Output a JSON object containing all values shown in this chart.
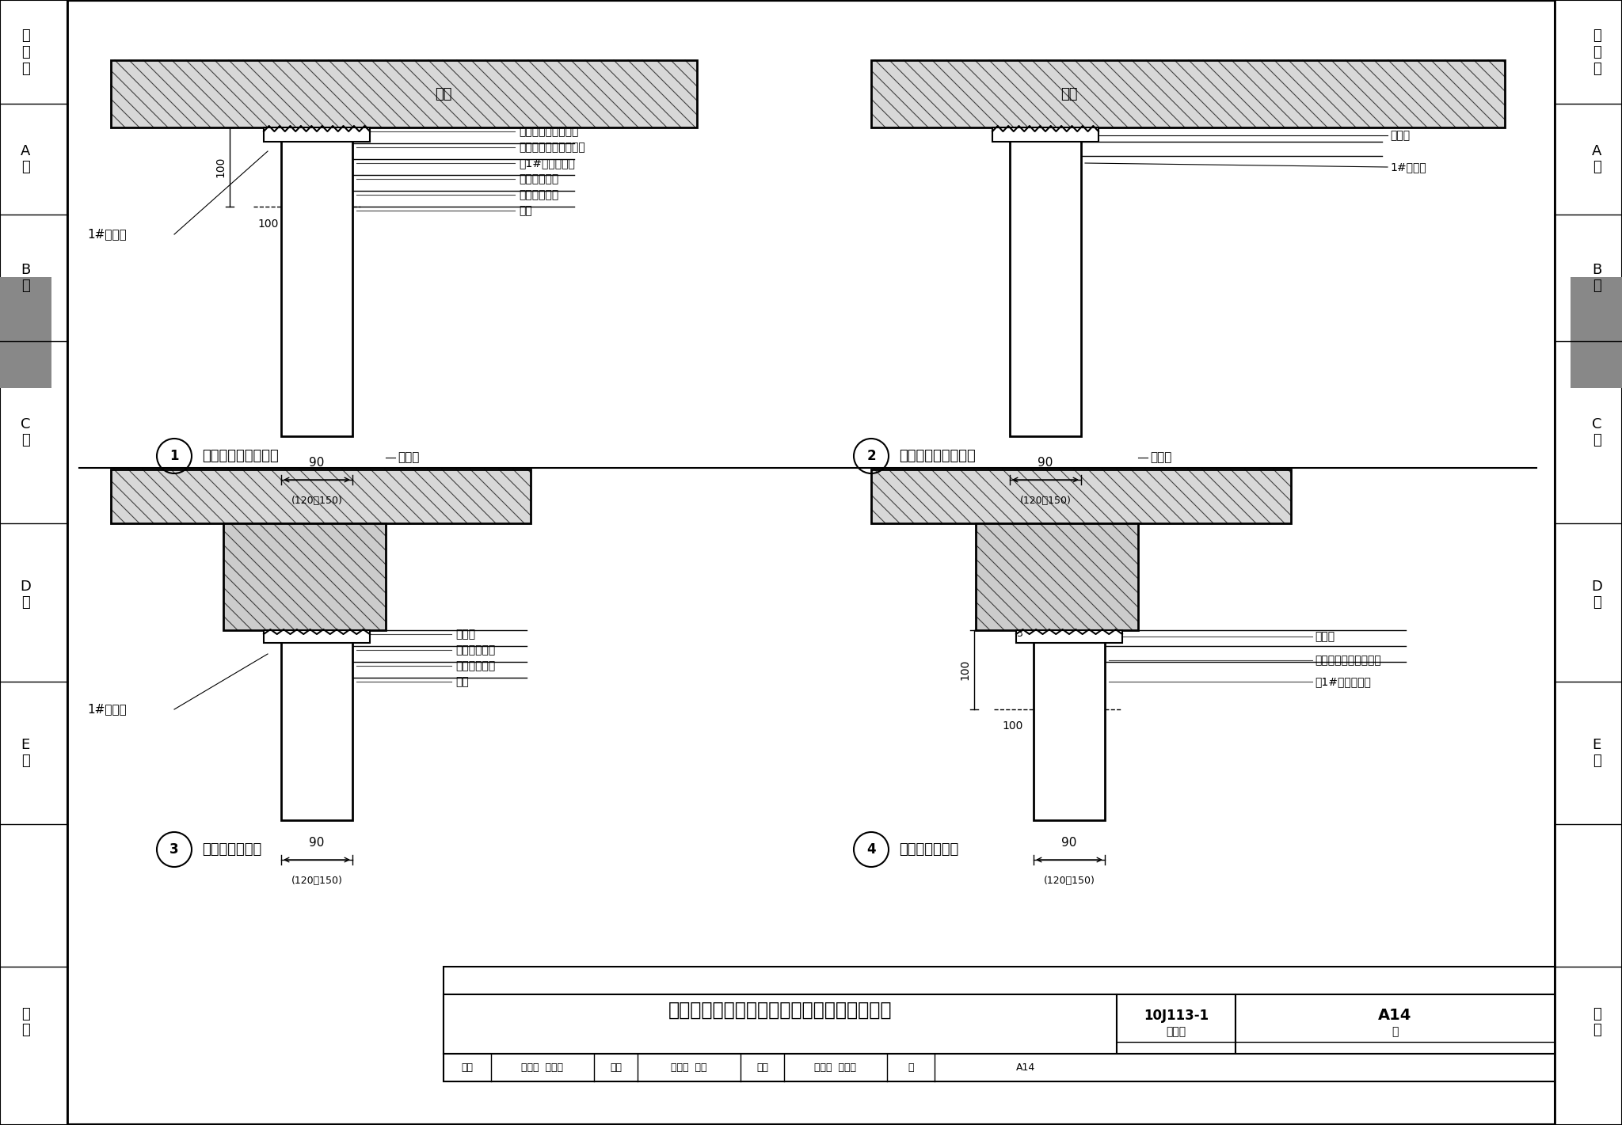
{
  "title": "轻混凝土、水泥、石膏条板与梁、板连接节点",
  "figure_number": "10J113-1",
  "page": "A14",
  "bg_color": "#ffffff",
  "diagram1_title": "条板与楼板底面连接",
  "diagram2_title": "条板与楼板底面连接",
  "diagram3_title": "条板与梁底连接",
  "diagram4_title": "条板与梁底连接",
  "annotations_d1": [
    "楼板底面刮腻子喷浆",
    "阴角附加玻纤布条一层",
    "用1#粘结剂粘结",
    "水泥砂浆填实",
    "轻质材料填孔",
    "条板"
  ],
  "annotations_d2_right": [
    "抹灰层",
    "1#粘结剂"
  ],
  "annotations_d3": [
    "抹灰层",
    "水泥砂浆填实",
    "轻质材料填孔",
    "条板"
  ],
  "annotations_d4_right": [
    "抹灰层",
    "阴角附加玻纤布条一层",
    "用1#粘结剂粘结"
  ],
  "sidebar_labels": [
    "总\n说\n明",
    "A\n型",
    "B\n型",
    "C\n型",
    "D\n型",
    "E\n型",
    "附\n录"
  ],
  "sidebar_gray": "#888888",
  "line_color": "#000000"
}
